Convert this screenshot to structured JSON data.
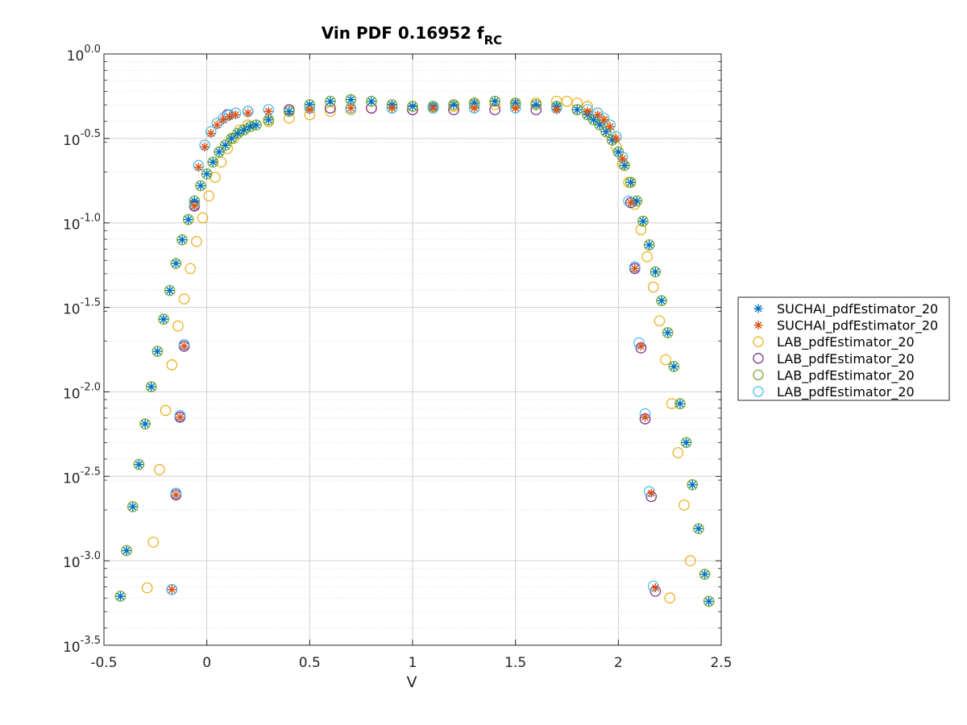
{
  "chart_data": {
    "type": "scatter",
    "title": "Vin PDF 0.16952 f",
    "title_subscript": "RC",
    "xlabel": "V",
    "ylabel": "",
    "xlim": [
      -0.5,
      2.5
    ],
    "ylim_log10": [
      -3.5,
      0.0
    ],
    "y_scale": "log",
    "x_ticks": [
      "-0.5",
      "0",
      "0.5",
      "1",
      "1.5",
      "2",
      "2.5"
    ],
    "y_ticks": [
      {
        "base": "10",
        "exp": "-3.5"
      },
      {
        "base": "10",
        "exp": "-3.0"
      },
      {
        "base": "10",
        "exp": "-2.5"
      },
      {
        "base": "10",
        "exp": "-2.0"
      },
      {
        "base": "10",
        "exp": "-1.5"
      },
      {
        "base": "10",
        "exp": "-1.0"
      },
      {
        "base": "10",
        "exp": "-0.5"
      },
      {
        "base": "10",
        "exp": "0.0"
      }
    ],
    "grid": true,
    "legend_position": "outside-right",
    "series": [
      {
        "name": "SUCHAI_pdfEstimator_20",
        "marker": "asterisk",
        "color": "#0072BD",
        "points": [
          [
            -0.42,
            -3.21
          ],
          [
            -0.39,
            -2.94
          ],
          [
            -0.36,
            -2.68
          ],
          [
            -0.33,
            -2.43
          ],
          [
            -0.3,
            -2.19
          ],
          [
            -0.27,
            -1.97
          ],
          [
            -0.24,
            -1.76
          ],
          [
            -0.21,
            -1.57
          ],
          [
            -0.18,
            -1.4
          ],
          [
            -0.15,
            -1.24
          ],
          [
            -0.12,
            -1.1
          ],
          [
            -0.09,
            -0.98
          ],
          [
            -0.06,
            -0.87
          ],
          [
            -0.03,
            -0.78
          ],
          [
            0.0,
            -0.71
          ],
          [
            0.03,
            -0.64
          ],
          [
            0.06,
            -0.58
          ],
          [
            0.09,
            -0.54
          ],
          [
            0.12,
            -0.5
          ],
          [
            0.15,
            -0.47
          ],
          [
            0.18,
            -0.45
          ],
          [
            0.21,
            -0.43
          ],
          [
            0.24,
            -0.42
          ],
          [
            0.3,
            -0.39
          ],
          [
            0.4,
            -0.34
          ],
          [
            0.5,
            -0.3
          ],
          [
            0.6,
            -0.28
          ],
          [
            0.7,
            -0.27
          ],
          [
            0.8,
            -0.28
          ],
          [
            0.9,
            -0.3
          ],
          [
            1.0,
            -0.31
          ],
          [
            1.1,
            -0.31
          ],
          [
            1.2,
            -0.3
          ],
          [
            1.3,
            -0.29
          ],
          [
            1.4,
            -0.28
          ],
          [
            1.5,
            -0.29
          ],
          [
            1.6,
            -0.3
          ],
          [
            1.7,
            -0.31
          ],
          [
            1.8,
            -0.33
          ],
          [
            1.85,
            -0.36
          ],
          [
            1.88,
            -0.39
          ],
          [
            1.91,
            -0.42
          ],
          [
            1.94,
            -0.46
          ],
          [
            1.97,
            -0.51
          ],
          [
            2.0,
            -0.58
          ],
          [
            2.03,
            -0.66
          ],
          [
            2.06,
            -0.76
          ],
          [
            2.09,
            -0.87
          ],
          [
            2.12,
            -0.99
          ],
          [
            2.15,
            -1.13
          ],
          [
            2.18,
            -1.29
          ],
          [
            2.21,
            -1.46
          ],
          [
            2.24,
            -1.65
          ],
          [
            2.27,
            -1.85
          ],
          [
            2.3,
            -2.07
          ],
          [
            2.33,
            -2.3
          ],
          [
            2.36,
            -2.55
          ],
          [
            2.39,
            -2.81
          ],
          [
            2.42,
            -3.08
          ],
          [
            2.44,
            -3.24
          ]
        ]
      },
      {
        "name": "SUCHAI_pdfEstimator_20",
        "marker": "asterisk",
        "color": "#D95319",
        "points": [
          [
            -0.17,
            -3.17
          ],
          [
            -0.15,
            -2.61
          ],
          [
            -0.11,
            -1.73
          ],
          [
            -0.13,
            -2.15
          ],
          [
            -0.06,
            -0.9
          ],
          [
            -0.04,
            -0.67
          ],
          [
            -0.01,
            -0.55
          ],
          [
            0.02,
            -0.47
          ],
          [
            0.05,
            -0.42
          ],
          [
            0.08,
            -0.39
          ],
          [
            0.11,
            -0.37
          ],
          [
            0.14,
            -0.36
          ],
          [
            0.2,
            -0.35
          ],
          [
            0.3,
            -0.34
          ],
          [
            0.5,
            -0.33
          ],
          [
            0.7,
            -0.32
          ],
          [
            0.9,
            -0.32
          ],
          [
            1.1,
            -0.32
          ],
          [
            1.3,
            -0.32
          ],
          [
            1.5,
            -0.32
          ],
          [
            1.7,
            -0.33
          ],
          [
            1.85,
            -0.34
          ],
          [
            1.9,
            -0.36
          ],
          [
            1.93,
            -0.39
          ],
          [
            1.96,
            -0.43
          ],
          [
            1.99,
            -0.5
          ],
          [
            2.02,
            -0.62
          ],
          [
            2.06,
            -0.88
          ],
          [
            2.08,
            -1.27
          ],
          [
            2.11,
            -1.73
          ],
          [
            2.13,
            -2.15
          ],
          [
            2.16,
            -2.6
          ],
          [
            2.18,
            -3.16
          ]
        ]
      },
      {
        "name": "LAB_pdfEstimator_20",
        "marker": "circle",
        "color": "#EDB120",
        "points": [
          [
            -0.29,
            -3.16
          ],
          [
            -0.26,
            -2.89
          ],
          [
            -0.23,
            -2.46
          ],
          [
            -0.2,
            -2.11
          ],
          [
            -0.17,
            -1.84
          ],
          [
            -0.14,
            -1.61
          ],
          [
            -0.11,
            -1.45
          ],
          [
            -0.08,
            -1.27
          ],
          [
            -0.05,
            -1.11
          ],
          [
            -0.02,
            -0.97
          ],
          [
            0.01,
            -0.84
          ],
          [
            0.04,
            -0.73
          ],
          [
            0.07,
            -0.64
          ],
          [
            0.1,
            -0.56
          ],
          [
            0.13,
            -0.5
          ],
          [
            0.16,
            -0.45
          ],
          [
            0.2,
            -0.42
          ],
          [
            0.3,
            -0.4
          ],
          [
            0.4,
            -0.38
          ],
          [
            0.5,
            -0.36
          ],
          [
            0.6,
            -0.34
          ],
          [
            0.7,
            -0.33
          ],
          [
            0.8,
            -0.32
          ],
          [
            0.9,
            -0.32
          ],
          [
            1.0,
            -0.33
          ],
          [
            1.1,
            -0.32
          ],
          [
            1.2,
            -0.31
          ],
          [
            1.3,
            -0.3
          ],
          [
            1.4,
            -0.3
          ],
          [
            1.5,
            -0.3
          ],
          [
            1.6,
            -0.29
          ],
          [
            1.7,
            -0.28
          ],
          [
            1.75,
            -0.28
          ],
          [
            1.8,
            -0.29
          ],
          [
            1.85,
            -0.31
          ],
          [
            1.9,
            -0.35
          ],
          [
            1.93,
            -0.4
          ],
          [
            1.96,
            -0.47
          ],
          [
            1.99,
            -0.55
          ],
          [
            2.02,
            -0.65
          ],
          [
            2.05,
            -0.76
          ],
          [
            2.08,
            -0.89
          ],
          [
            2.11,
            -1.04
          ],
          [
            2.14,
            -1.2
          ],
          [
            2.17,
            -1.38
          ],
          [
            2.2,
            -1.58
          ],
          [
            2.23,
            -1.81
          ],
          [
            2.26,
            -2.07
          ],
          [
            2.29,
            -2.36
          ],
          [
            2.32,
            -2.67
          ],
          [
            2.35,
            -3.0
          ],
          [
            2.25,
            -3.22
          ]
        ]
      },
      {
        "name": "LAB_pdfEstimator_20",
        "marker": "circle",
        "color": "#7E2F8E",
        "points": [
          [
            -0.17,
            -3.17
          ],
          [
            -0.15,
            -2.61
          ],
          [
            -0.11,
            -1.73
          ],
          [
            -0.13,
            -2.15
          ],
          [
            -0.06,
            -0.9
          ],
          [
            0.1,
            -0.36
          ],
          [
            0.2,
            -0.34
          ],
          [
            0.4,
            -0.33
          ],
          [
            0.6,
            -0.32
          ],
          [
            0.8,
            -0.32
          ],
          [
            1.0,
            -0.33
          ],
          [
            1.2,
            -0.33
          ],
          [
            1.4,
            -0.33
          ],
          [
            1.6,
            -0.33
          ],
          [
            1.8,
            -0.33
          ],
          [
            2.06,
            -0.88
          ],
          [
            2.08,
            -1.27
          ],
          [
            2.11,
            -1.74
          ],
          [
            2.13,
            -2.16
          ],
          [
            2.16,
            -2.62
          ],
          [
            2.18,
            -3.18
          ]
        ]
      },
      {
        "name": "LAB_pdfEstimator_20",
        "marker": "circle",
        "color": "#77AC30",
        "points": [
          [
            -0.42,
            -3.21
          ],
          [
            -0.39,
            -2.94
          ],
          [
            -0.36,
            -2.68
          ],
          [
            -0.33,
            -2.43
          ],
          [
            -0.3,
            -2.19
          ],
          [
            -0.27,
            -1.97
          ],
          [
            -0.24,
            -1.76
          ],
          [
            -0.21,
            -1.57
          ],
          [
            -0.18,
            -1.4
          ],
          [
            -0.15,
            -1.24
          ],
          [
            -0.12,
            -1.1
          ],
          [
            -0.09,
            -0.98
          ],
          [
            -0.06,
            -0.87
          ],
          [
            -0.03,
            -0.78
          ],
          [
            0.0,
            -0.71
          ],
          [
            0.03,
            -0.64
          ],
          [
            0.06,
            -0.58
          ],
          [
            0.09,
            -0.54
          ],
          [
            0.12,
            -0.5
          ],
          [
            0.15,
            -0.47
          ],
          [
            0.18,
            -0.45
          ],
          [
            0.21,
            -0.43
          ],
          [
            0.24,
            -0.42
          ],
          [
            0.3,
            -0.39
          ],
          [
            0.4,
            -0.34
          ],
          [
            0.5,
            -0.3
          ],
          [
            0.6,
            -0.28
          ],
          [
            0.7,
            -0.27
          ],
          [
            0.8,
            -0.28
          ],
          [
            0.9,
            -0.3
          ],
          [
            1.0,
            -0.31
          ],
          [
            1.1,
            -0.31
          ],
          [
            1.2,
            -0.3
          ],
          [
            1.3,
            -0.29
          ],
          [
            1.4,
            -0.28
          ],
          [
            1.5,
            -0.29
          ],
          [
            1.6,
            -0.3
          ],
          [
            1.7,
            -0.31
          ],
          [
            1.8,
            -0.33
          ],
          [
            1.85,
            -0.36
          ],
          [
            1.88,
            -0.39
          ],
          [
            1.91,
            -0.42
          ],
          [
            1.94,
            -0.46
          ],
          [
            1.97,
            -0.51
          ],
          [
            2.0,
            -0.58
          ],
          [
            2.03,
            -0.66
          ],
          [
            2.06,
            -0.76
          ],
          [
            2.09,
            -0.87
          ],
          [
            2.12,
            -0.99
          ],
          [
            2.15,
            -1.13
          ],
          [
            2.18,
            -1.29
          ],
          [
            2.21,
            -1.46
          ],
          [
            2.24,
            -1.65
          ],
          [
            2.27,
            -1.85
          ],
          [
            2.3,
            -2.07
          ],
          [
            2.33,
            -2.3
          ],
          [
            2.36,
            -2.55
          ],
          [
            2.39,
            -2.81
          ],
          [
            2.42,
            -3.08
          ],
          [
            2.44,
            -3.24
          ]
        ]
      },
      {
        "name": "LAB_pdfEstimator_20",
        "marker": "circle",
        "color": "#4DBEEE",
        "points": [
          [
            -0.17,
            -3.17
          ],
          [
            -0.15,
            -2.6
          ],
          [
            -0.11,
            -1.72
          ],
          [
            -0.13,
            -2.14
          ],
          [
            -0.06,
            -0.89
          ],
          [
            -0.04,
            -0.66
          ],
          [
            -0.01,
            -0.54
          ],
          [
            0.02,
            -0.46
          ],
          [
            0.05,
            -0.41
          ],
          [
            0.08,
            -0.38
          ],
          [
            0.11,
            -0.36
          ],
          [
            0.14,
            -0.35
          ],
          [
            0.2,
            -0.34
          ],
          [
            0.3,
            -0.33
          ],
          [
            0.5,
            -0.32
          ],
          [
            0.7,
            -0.32
          ],
          [
            0.9,
            -0.32
          ],
          [
            1.1,
            -0.32
          ],
          [
            1.3,
            -0.32
          ],
          [
            1.5,
            -0.32
          ],
          [
            1.7,
            -0.32
          ],
          [
            1.85,
            -0.33
          ],
          [
            1.9,
            -0.35
          ],
          [
            1.93,
            -0.38
          ],
          [
            1.96,
            -0.42
          ],
          [
            1.99,
            -0.49
          ],
          [
            2.02,
            -0.61
          ],
          [
            2.05,
            -0.87
          ],
          [
            2.08,
            -1.26
          ],
          [
            2.1,
            -1.71
          ],
          [
            2.13,
            -2.13
          ],
          [
            2.15,
            -2.59
          ],
          [
            2.17,
            -3.15
          ]
        ]
      }
    ]
  }
}
